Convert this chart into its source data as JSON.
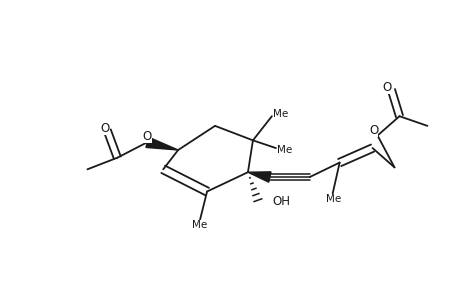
{
  "background": "#ffffff",
  "line_color": "#1a1a1a",
  "lw": 1.3,
  "figsize": [
    4.6,
    3.0
  ],
  "dpi": 100,
  "xlim": [
    0.0,
    9.5
  ],
  "ylim": [
    0.5,
    6.5
  ]
}
